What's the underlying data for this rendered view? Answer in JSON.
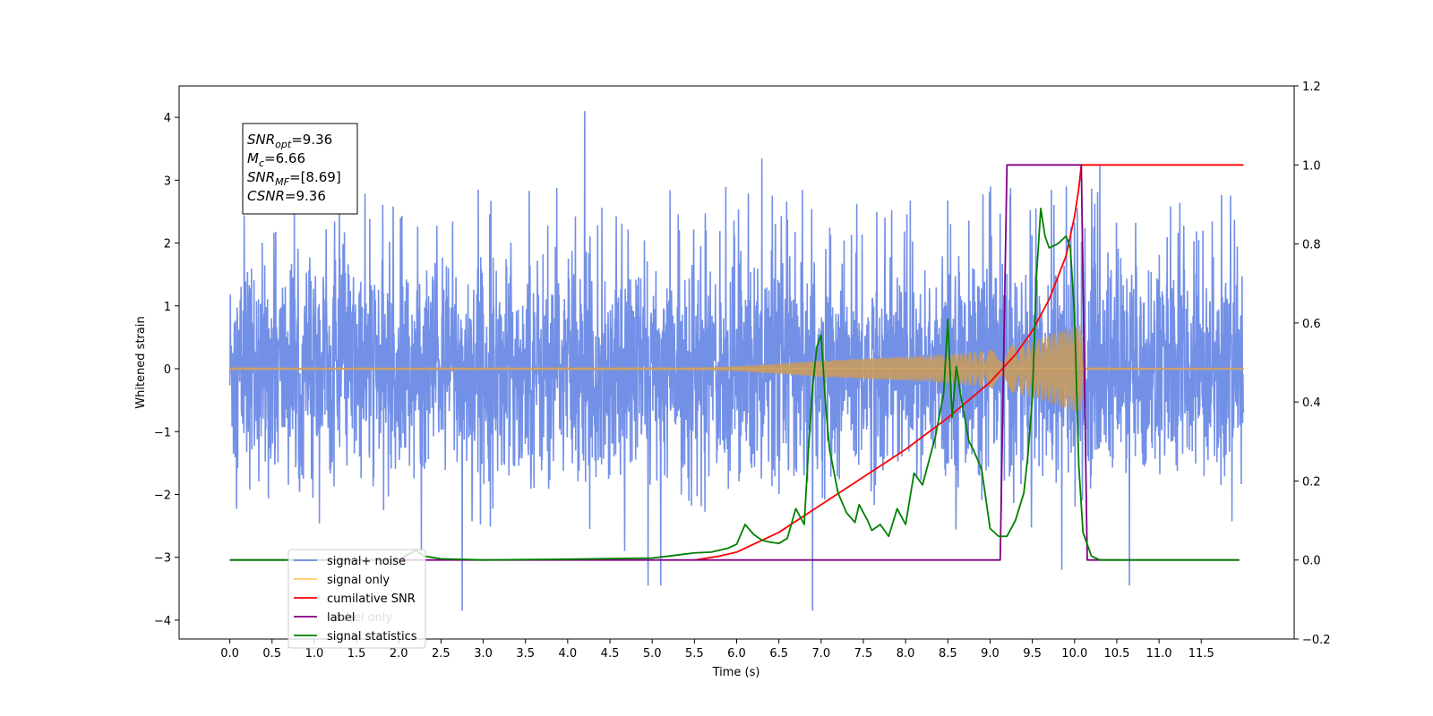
{
  "chart_data": {
    "type": "line",
    "xlabel": "Time (s)",
    "ylabel": "Whitened strain",
    "xlim": [
      -0.6,
      12.6
    ],
    "ylim": [
      -4.3,
      4.5
    ],
    "y2lim": [
      -0.2,
      1.2
    ],
    "x_ticks": [
      "0.0",
      "0.5",
      "1.0",
      "1.5",
      "2.0",
      "2.5",
      "3.0",
      "3.5",
      "4.0",
      "4.5",
      "5.0",
      "5.5",
      "6.0",
      "6.5",
      "7.0",
      "7.5",
      "8.0",
      "8.5",
      "9.0",
      "9.5",
      "10.0",
      "10.5",
      "11.0",
      "11.5"
    ],
    "y_ticks": [
      "4",
      "3",
      "2",
      "1",
      "0",
      "−1",
      "−2",
      "−3",
      "−4"
    ],
    "y2_ticks": [
      "1.2",
      "1.0",
      "0.8",
      "0.6",
      "0.4",
      "0.2",
      "0.0",
      "−0.2"
    ],
    "grid": false,
    "legend": {
      "placement": "lower-left",
      "entries": [
        {
          "label": "signal+ noise",
          "color": "#6b8ae6"
        },
        {
          "label": "signal only",
          "color": "#ffc966"
        },
        {
          "label": "cumilative SNR",
          "color": "#ff0000"
        },
        {
          "label": "label",
          "color": "#800080"
        },
        {
          "label": "signal statistics",
          "color": "#008000"
        }
      ],
      "hidden_text": [
        "label only"
      ]
    },
    "annotation": {
      "lines": [
        {
          "sym": "SNR",
          "sub": "opt",
          "val": "=9.36"
        },
        {
          "sym": "M",
          "sub": "c",
          "val": "=6.66"
        },
        {
          "sym": "SNR",
          "sub": "MF",
          "val": "=[8.69]"
        },
        {
          "sym": "CSNR",
          "sub": "",
          "val": "=9.36"
        }
      ]
    },
    "series": [
      {
        "name": "signal+ noise",
        "axis": "left",
        "color": "#6b8ae6",
        "x_range": [
          0.0,
          12.0
        ],
        "band": [
          -1.5,
          2.4
        ],
        "notable_peaks": [
          [
            4.2,
            4.1
          ],
          [
            2.75,
            -3.85
          ],
          [
            6.9,
            -3.85
          ],
          [
            10.65,
            -3.45
          ],
          [
            4.95,
            -3.45
          ],
          [
            5.1,
            -3.45
          ],
          [
            10.3,
            3.25
          ],
          [
            6.3,
            3.35
          ],
          [
            9.85,
            -3.2
          ]
        ]
      },
      {
        "name": "signal only",
        "axis": "left",
        "color": "#ffc966",
        "envelope_x": [
          0,
          5.5,
          6.0,
          6.5,
          7.0,
          7.5,
          8.0,
          8.5,
          9.0,
          9.5,
          9.8,
          10.0,
          10.08,
          10.1,
          12.0
        ],
        "envelope_amp": [
          0.01,
          0.02,
          0.04,
          0.08,
          0.13,
          0.16,
          0.19,
          0.23,
          0.3,
          0.45,
          0.58,
          0.68,
          0.7,
          0.02,
          0.01
        ]
      },
      {
        "name": "cumilative SNR",
        "axis": "right",
        "color": "#ff0000",
        "x": [
          5.5,
          5.8,
          6.0,
          6.2,
          6.5,
          7.0,
          7.5,
          8.0,
          8.5,
          9.0,
          9.3,
          9.5,
          9.7,
          9.9,
          10.0,
          10.05,
          10.08,
          12.0
        ],
        "y": [
          0.0,
          0.01,
          0.02,
          0.04,
          0.07,
          0.14,
          0.21,
          0.28,
          0.36,
          0.45,
          0.52,
          0.58,
          0.66,
          0.77,
          0.87,
          0.94,
          1.0,
          1.0
        ]
      },
      {
        "name": "label",
        "axis": "right",
        "color": "#800080",
        "x": [
          0.0,
          9.12,
          9.2,
          10.08,
          10.15,
          11.95
        ],
        "y": [
          0.0,
          0.0,
          1.0,
          1.0,
          0.0,
          0.0
        ]
      },
      {
        "name": "signal statistics",
        "axis": "right",
        "color": "#008000",
        "x": [
          0.0,
          2.0,
          2.2,
          2.3,
          2.5,
          3.0,
          4.0,
          5.0,
          5.2,
          5.5,
          5.7,
          5.9,
          6.0,
          6.1,
          6.2,
          6.3,
          6.4,
          6.5,
          6.6,
          6.7,
          6.8,
          6.85,
          6.9,
          6.95,
          7.0,
          7.05,
          7.1,
          7.2,
          7.3,
          7.4,
          7.45,
          7.55,
          7.6,
          7.7,
          7.8,
          7.9,
          8.0,
          8.1,
          8.2,
          8.3,
          8.35,
          8.45,
          8.5,
          8.55,
          8.6,
          8.65,
          8.75,
          8.8,
          8.9,
          9.0,
          9.1,
          9.2,
          9.3,
          9.4,
          9.45,
          9.5,
          9.55,
          9.6,
          9.65,
          9.7,
          9.8,
          9.9,
          9.95,
          10.0,
          10.05,
          10.1,
          10.2,
          10.3,
          11.95
        ],
        "y": [
          0.0,
          0.0,
          0.025,
          0.01,
          0.003,
          0.0,
          0.002,
          0.005,
          0.01,
          0.018,
          0.02,
          0.03,
          0.04,
          0.09,
          0.065,
          0.05,
          0.045,
          0.042,
          0.055,
          0.13,
          0.09,
          0.28,
          0.44,
          0.54,
          0.57,
          0.4,
          0.28,
          0.17,
          0.12,
          0.095,
          0.14,
          0.1,
          0.075,
          0.09,
          0.06,
          0.13,
          0.09,
          0.22,
          0.19,
          0.27,
          0.31,
          0.42,
          0.61,
          0.36,
          0.49,
          0.42,
          0.3,
          0.28,
          0.23,
          0.08,
          0.06,
          0.06,
          0.1,
          0.17,
          0.27,
          0.41,
          0.72,
          0.89,
          0.82,
          0.79,
          0.8,
          0.82,
          0.79,
          0.62,
          0.24,
          0.07,
          0.01,
          0.0,
          0.0
        ]
      }
    ]
  }
}
